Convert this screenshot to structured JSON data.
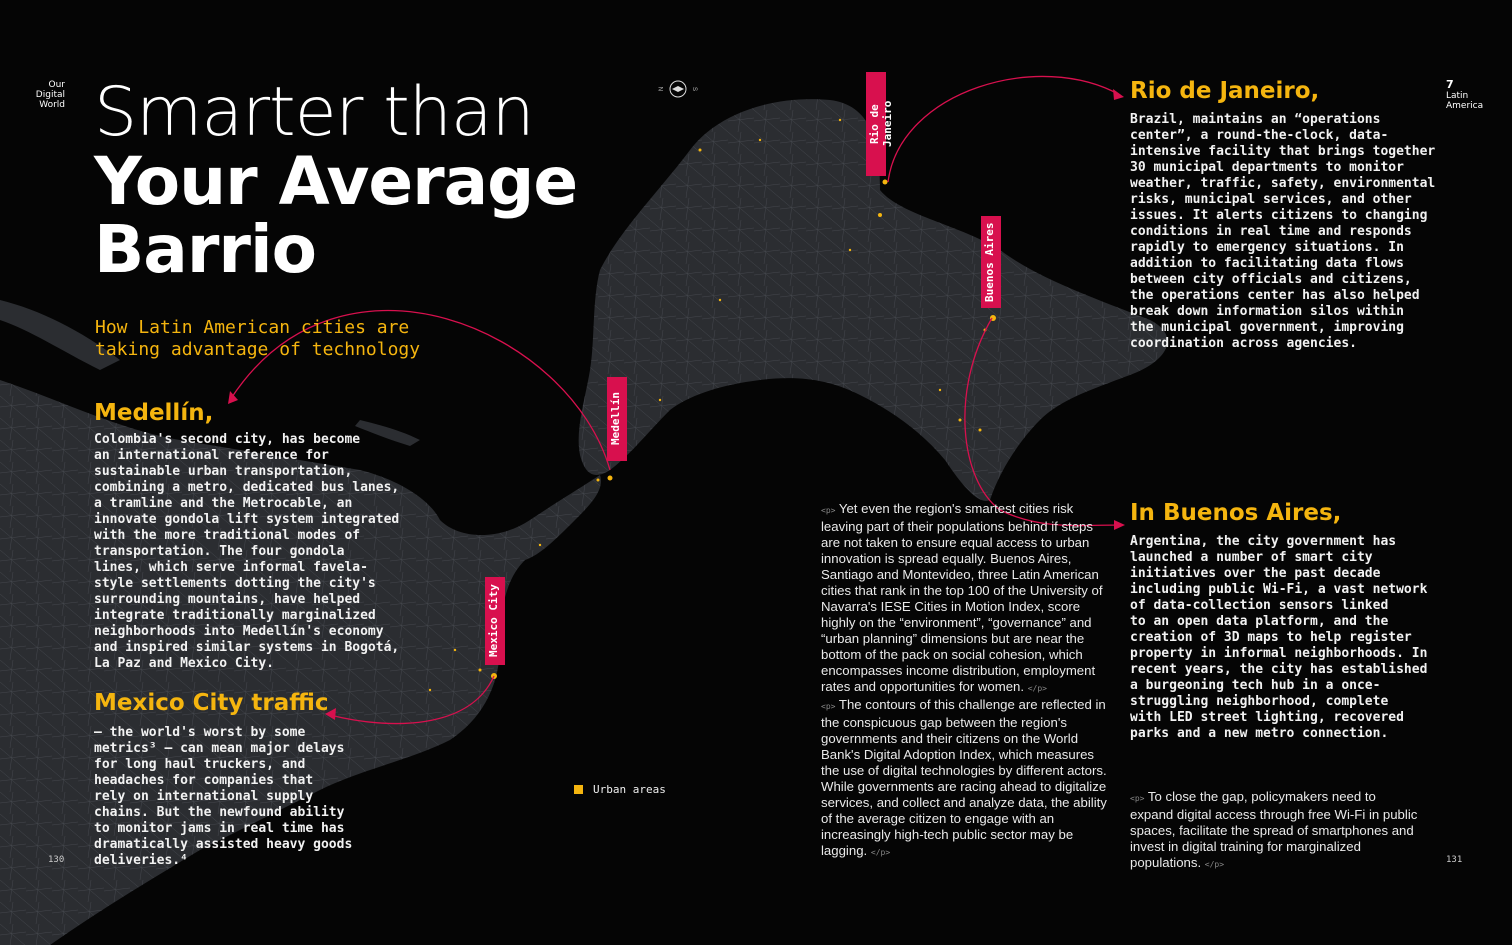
{
  "left_corner": {
    "line1": "Our",
    "line2": "Digital",
    "line3": "World"
  },
  "right_corner": {
    "number": "7",
    "line1": "Latin",
    "line2": "America"
  },
  "title": {
    "light": "Smarter than",
    "bold1": "Your Average",
    "bold2": "Barrio"
  },
  "subtitle": {
    "line1": "How Latin American cities are",
    "line2": "taking advantage of technology"
  },
  "medellin": {
    "heading": "Medellín,",
    "body": "Colombia's second city, has become\nan international reference for\nsustainable urban transportation,\ncombining a metro, dedicated bus lanes,\na tramline and the Metrocable, an\ninnovate gondola lift system integrated\nwith the more traditional modes of\ntransportation. The four gondola\nlines, which serve informal favela-\nstyle settlements dotting the city's\nsurrounding mountains, have helped\nintegrate traditionally marginalized\nneighborhoods into Medellín's economy\nand inspired similar systems in Bogotá,\nLa Paz and Mexico City."
  },
  "mexico": {
    "heading": "Mexico City traffic",
    "body": "– the world's worst by some\nmetrics³ – can mean major delays\nfor long haul truckers, and\nheadaches for companies that\nrely on international supply\nchains. But the newfound ability\nto monitor jams in real time has\ndramatically assisted heavy goods\ndeliveries.⁴"
  },
  "rio": {
    "heading": "Rio de Janeiro,",
    "body": "Brazil, maintains an “operations\ncenter”, a round-the-clock, data-\nintensive facility that brings together\n30 municipal departments to monitor\nweather, traffic, safety, environmental\nrisks, municipal services, and other\nissues. It alerts citizens to changing\nconditions in real time and responds\nrapidly to emergency situations. In\naddition to facilitating data flows\nbetween city officials and citizens,\nthe operations center has also helped\nbreak down information silos within\nthe municipal government, improving\ncoordination across agencies."
  },
  "buenos": {
    "heading": "In Buenos Aires,",
    "body": "Argentina, the city government has\nlaunched a number of smart city\ninitiatives over the past decade\nincluding public Wi-Fi, a vast network\nof data-collection sensors linked\nto an open data platform, and the\ncreation of 3D maps to help register\nproperty in informal neighborhoods. In\nrecent years, the city has established\na burgeoning tech hub in a once-\nstruggling neighborhood, complete\nwith LED street lighting, recovered\nparks and a new metro connection."
  },
  "middle_text": {
    "p_open": "<p>",
    "p_close": "</p>",
    "para1": "Yet even the region's smartest cities risk leaving part of their populations behind if steps are not taken to ensure equal access to urban innovation is spread equally. Buenos Aires, Santiago and Montevideo, three Latin American cities that rank in the top 100 of the University of Navarra's IESE Cities in Motion Index, score highly on the “environment”, “governance” and “urban planning” dimensions but are near the bottom of the pack on social cohesion, which encompasses income distribution, employment rates and opportunities for women.",
    "para2": "The contours of this challenge are reflected in the conspicuous gap between the region's governments and their citizens on the World Bank's Digital Adoption Index, which measures the use of digital technologies by different actors. While governments are racing ahead to digitalize services, and collect and analyze data, the ability of the average citizen to engage with an increasingly high-tech public sector may be lagging."
  },
  "closing_text": {
    "para": "To close the gap, policymakers need to expand digital access through free Wi-Fi in public spaces, facilitate the spread of smartphones and invest in digital training for marginalized populations."
  },
  "city_tags": {
    "rio": "Rio de Janeiro",
    "buenos": "Buenos Aires",
    "medellin": "Medellín",
    "mexico": "Mexico City"
  },
  "compass": {
    "left": "N",
    "right": "S"
  },
  "legend": {
    "label": "Urban areas"
  },
  "page_numbers": {
    "left": "130",
    "right": "131"
  },
  "colors": {
    "accent": "#f5b50f",
    "tag": "#d8104e",
    "land": "#2a2c30",
    "background": "#050505"
  }
}
